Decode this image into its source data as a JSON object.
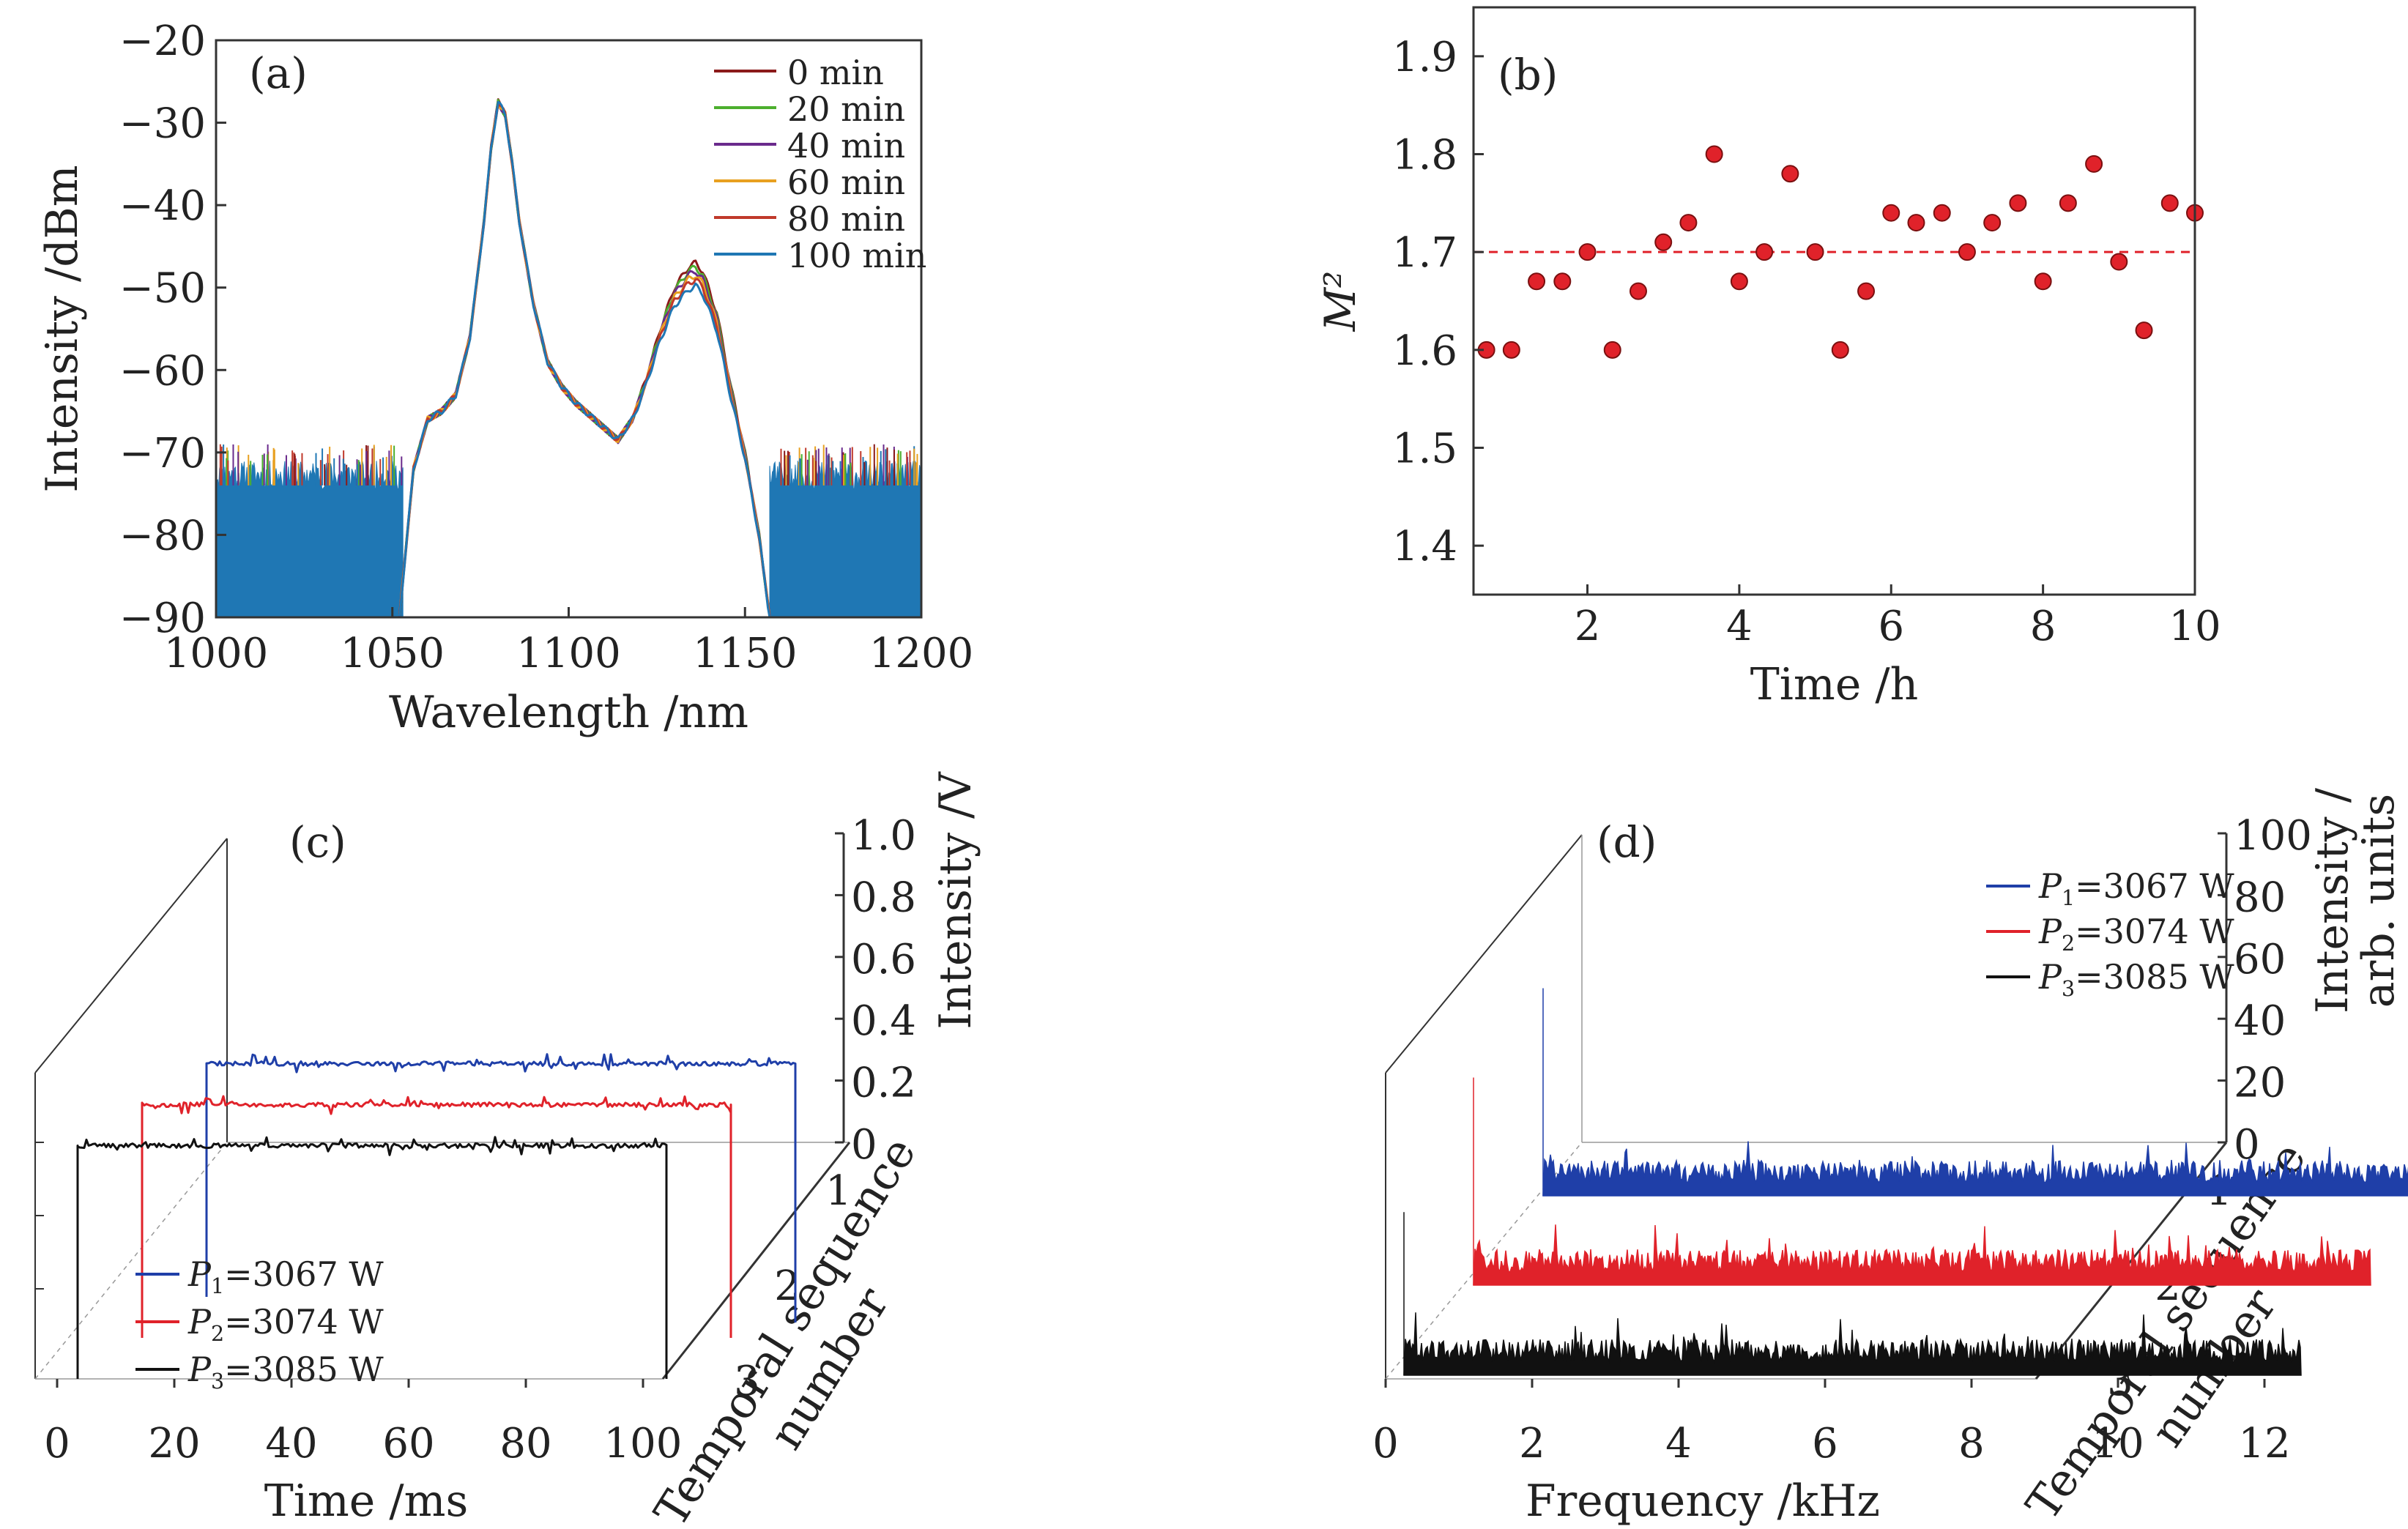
{
  "chart_data": [
    {
      "panel": "(a)",
      "type": "line",
      "xlabel": "Wavelength /nm",
      "ylabel": "Intensity /dBm",
      "xlim": [
        1000,
        1200
      ],
      "ylim": [
        -90,
        -20
      ],
      "xticks": [
        1000,
        1050,
        1100,
        1150,
        1200
      ],
      "yticks": [
        -20,
        -30,
        -40,
        -50,
        -60,
        -70,
        -80,
        -90
      ],
      "legend": "top-right",
      "series": [
        {
          "name": "0 min",
          "color": "#8b1a1a",
          "peak2": -47.0
        },
        {
          "name": "20 min",
          "color": "#4caf2e",
          "peak2": -47.5
        },
        {
          "name": "40 min",
          "color": "#6a2a8c",
          "peak2": -48.0
        },
        {
          "name": "60 min",
          "color": "#e8a020",
          "peak2": -48.5
        },
        {
          "name": "80 min",
          "color": "#c0392b",
          "peak2": -49.0
        },
        {
          "name": "100 min",
          "color": "#1f77b4",
          "peak2": -49.8
        }
      ],
      "x": [
        1052,
        1056,
        1060,
        1064,
        1068,
        1072,
        1076,
        1078,
        1080,
        1082,
        1084,
        1086,
        1090,
        1094,
        1098,
        1102,
        1106,
        1110,
        1114,
        1118,
        1122,
        1126,
        1130,
        1134,
        1136,
        1138,
        1142,
        1146,
        1150,
        1154,
        1157
      ],
      "y": [
        -90,
        -72,
        -66,
        -65,
        -63,
        -56,
        -42,
        -33,
        -27.5,
        -29,
        -35,
        -42,
        -52,
        -59,
        -62,
        -64,
        -65.5,
        -67,
        -68.5,
        -66,
        -61,
        -55,
        -50,
        -47.5,
        -47,
        -48,
        -53,
        -62,
        -70,
        -80,
        -90
      ],
      "noise_floor": -73
    },
    {
      "panel": "(b)",
      "type": "scatter",
      "xlabel": "Time /h",
      "ylabel": "M²",
      "xlim": [
        0.5,
        10
      ],
      "ylim": [
        1.35,
        1.95
      ],
      "xticks": [
        2,
        4,
        6,
        8,
        10
      ],
      "yticks": [
        1.4,
        1.5,
        1.6,
        1.7,
        1.8,
        1.9
      ],
      "reference_line": 1.7,
      "x": [
        0.67,
        1.0,
        1.33,
        1.67,
        2.0,
        2.33,
        2.67,
        3.0,
        3.33,
        3.67,
        4.0,
        4.33,
        4.67,
        5.0,
        5.33,
        5.67,
        6.0,
        6.33,
        6.67,
        7.0,
        7.33,
        7.67,
        8.0,
        8.33,
        8.67,
        9.0,
        9.33,
        9.67,
        10.0
      ],
      "y": [
        1.6,
        1.6,
        1.67,
        1.67,
        1.7,
        1.6,
        1.66,
        1.71,
        1.73,
        1.8,
        1.67,
        1.7,
        1.78,
        1.7,
        1.6,
        1.66,
        1.74,
        1.73,
        1.74,
        1.7,
        1.73,
        1.75,
        1.67,
        1.75,
        1.79,
        1.69,
        1.62,
        1.75,
        1.74
      ]
    },
    {
      "panel": "(c)",
      "type": "line",
      "xlabel": "Time /ms",
      "ylabel": "Intensity /V",
      "zlabel": [
        "Temporal sequence",
        "number"
      ],
      "xticks": [
        0,
        20,
        40,
        60,
        80,
        100
      ],
      "yticks": [
        0,
        0.2,
        0.4,
        0.6,
        0.8,
        1.0
      ],
      "ytick_labels": [
        "0",
        "0.2",
        "0.4",
        "0.6",
        "0.8",
        "1.0"
      ],
      "zticks": [
        "1",
        "2",
        "3"
      ],
      "legend": "bottom-left",
      "series": [
        {
          "seq": 1,
          "sym": "P",
          "sub": "1",
          "rest": "=3067 W",
          "color": "#1f3fa8",
          "level": 0.7
        },
        {
          "seq": 2,
          "sym": "P",
          "sub": "2",
          "rest": "=3074 W",
          "color": "#e0222a",
          "level": 0.7
        },
        {
          "seq": 3,
          "sym": "P",
          "sub": "3",
          "rest": "=3085 W",
          "color": "#111111",
          "level": 0.7
        }
      ]
    },
    {
      "panel": "(d)",
      "type": "line",
      "xlabel": "Frequency /kHz",
      "ylabel": [
        "Intensity /",
        "arb. units"
      ],
      "zlabel": [
        "Temporal sequence",
        "number"
      ],
      "xticks": [
        0,
        2,
        4,
        6,
        8,
        10,
        12
      ],
      "yticks": [
        0,
        20,
        40,
        60,
        80,
        100
      ],
      "zticks": [
        "1",
        "2",
        "3"
      ],
      "legend": "top-right",
      "series": [
        {
          "seq": 1,
          "sym": "P",
          "sub": "1",
          "rest": "=3067 W",
          "color": "#1f3fa8",
          "dc_peak": 70,
          "floor": 4
        },
        {
          "seq": 2,
          "sym": "P",
          "sub": "2",
          "rest": "=3074 W",
          "color": "#e0222a",
          "dc_peak": 70,
          "floor": 4
        },
        {
          "seq": 3,
          "sym": "P",
          "sub": "3",
          "rest": "=3085 W",
          "color": "#111111",
          "dc_peak": 55,
          "floor": 4
        }
      ]
    }
  ]
}
